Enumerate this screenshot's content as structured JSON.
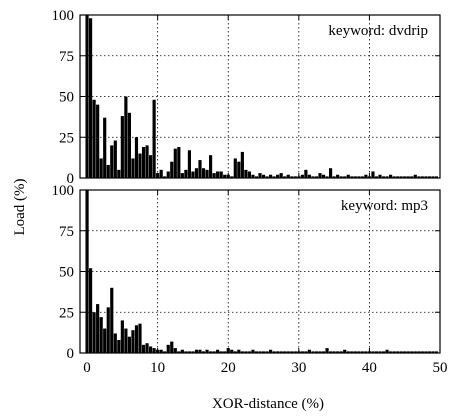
{
  "chart_data": [
    {
      "type": "bar",
      "legend": "keyword: dvdrip",
      "legend_placement": "top-right",
      "xlim": [
        -1,
        50
      ],
      "ylim": [
        0,
        100
      ],
      "xticks": [
        0,
        10,
        20,
        30,
        40,
        50
      ],
      "yticks": [
        0,
        25,
        50,
        75,
        100
      ],
      "grid": true,
      "ylabel": "Load (%)",
      "xlabel": "",
      "x": [
        0,
        0.5,
        1,
        1.5,
        2,
        2.5,
        3,
        3.5,
        4,
        4.5,
        5,
        5.5,
        6,
        6.5,
        7,
        7.5,
        8,
        8.5,
        9,
        9.5,
        10,
        10.5,
        11,
        11.5,
        12,
        12.5,
        13,
        13.5,
        14,
        14.5,
        15,
        15.5,
        16,
        16.5,
        17,
        17.5,
        18,
        18.5,
        19,
        19.5,
        20,
        20.5,
        21,
        21.5,
        22,
        22.5,
        23,
        23.5,
        24,
        24.5,
        25,
        25.5,
        26,
        26.5,
        27,
        27.5,
        28,
        28.5,
        29,
        29.5,
        30,
        30.5,
        31,
        31.5,
        32,
        32.5,
        33,
        33.5,
        34,
        34.5,
        35,
        35.5,
        36,
        36.5,
        37,
        37.5,
        38,
        38.5,
        39,
        39.5,
        40,
        40.5,
        41,
        41.5,
        42,
        42.5,
        43,
        43.5,
        44,
        44.5,
        45,
        45.5,
        46,
        46.5,
        47,
        47.5,
        48,
        48.5,
        49,
        49.5
      ],
      "values": [
        100,
        98,
        48,
        45,
        12,
        37,
        8,
        20,
        23,
        5,
        38,
        50,
        40,
        12,
        25,
        15,
        19,
        20,
        14,
        48,
        3,
        5,
        1,
        4,
        10,
        18,
        19,
        3,
        5,
        17,
        4,
        6,
        11,
        6,
        5,
        14,
        3,
        4,
        4,
        2,
        2,
        1,
        12,
        10,
        16,
        5,
        4,
        2,
        1,
        3,
        2,
        1,
        2,
        1,
        2,
        3,
        1,
        2,
        1,
        1,
        1,
        2,
        5,
        2,
        1,
        1,
        3,
        2,
        1,
        6,
        1,
        2,
        1,
        1,
        2,
        1,
        1,
        1,
        1,
        2,
        1,
        4,
        1,
        2,
        1,
        1,
        2,
        1,
        1,
        1,
        1,
        1,
        1,
        2,
        1,
        1,
        1,
        1,
        1,
        1
      ]
    },
    {
      "type": "bar",
      "legend": "keyword: mp3",
      "legend_placement": "top-right",
      "xlim": [
        -1,
        50
      ],
      "ylim": [
        0,
        100
      ],
      "xticks": [
        0,
        10,
        20,
        30,
        40,
        50
      ],
      "yticks": [
        0,
        25,
        50,
        75,
        100
      ],
      "grid": true,
      "ylabel": "",
      "xlabel": "XOR-distance (%)",
      "x": [
        0,
        0.5,
        1,
        1.5,
        2,
        2.5,
        3,
        3.5,
        4,
        4.5,
        5,
        5.5,
        6,
        6.5,
        7,
        7.5,
        8,
        8.5,
        9,
        9.5,
        10,
        10.5,
        11,
        11.5,
        12,
        12.5,
        13,
        13.5,
        14,
        14.5,
        15,
        15.5,
        16,
        16.5,
        17,
        17.5,
        18,
        18.5,
        19,
        19.5,
        20,
        20.5,
        21,
        21.5,
        22,
        22.5,
        23,
        23.5,
        24,
        24.5,
        25,
        25.5,
        26,
        26.5,
        27,
        27.5,
        28,
        28.5,
        29,
        29.5,
        30,
        30.5,
        31,
        31.5,
        32,
        32.5,
        33,
        33.5,
        34,
        34.5,
        35,
        35.5,
        36,
        36.5,
        37,
        37.5,
        38,
        38.5,
        39,
        39.5,
        40,
        40.5,
        41,
        41.5,
        42,
        42.5,
        43,
        43.5,
        44,
        44.5,
        45,
        45.5,
        46,
        46.5,
        47,
        47.5,
        48,
        48.5,
        49,
        49.5
      ],
      "values": [
        100,
        52,
        25,
        30,
        22,
        15,
        28,
        40,
        12,
        8,
        20,
        15,
        10,
        14,
        17,
        18,
        5,
        6,
        4,
        3,
        2,
        2,
        1,
        5,
        7,
        3,
        1,
        2,
        1,
        1,
        1,
        2,
        2,
        1,
        2,
        1,
        1,
        2,
        1,
        1,
        3,
        2,
        1,
        2,
        1,
        1,
        1,
        2,
        1,
        1,
        1,
        1,
        2,
        1,
        1,
        1,
        1,
        1,
        1,
        1,
        1,
        1,
        1,
        2,
        1,
        1,
        1,
        1,
        3,
        1,
        1,
        1,
        1,
        2,
        1,
        1,
        1,
        1,
        1,
        1,
        1,
        1,
        1,
        1,
        1,
        2,
        1,
        1,
        1,
        1,
        1,
        1,
        1,
        1,
        1,
        1,
        1,
        1,
        1,
        1
      ]
    }
  ]
}
